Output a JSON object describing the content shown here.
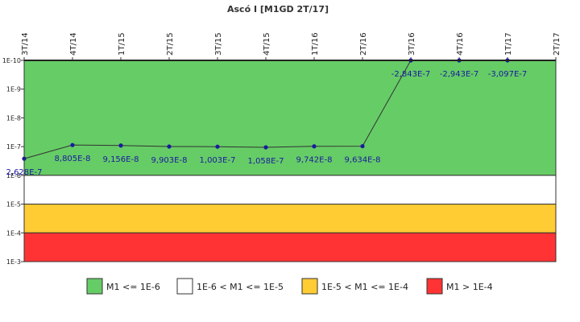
{
  "chart_data": {
    "type": "line",
    "title": "Ascó I [M1GD 2T/17]",
    "categories": [
      "3T/14",
      "4T/14",
      "1T/15",
      "2T/15",
      "3T/15",
      "4T/15",
      "1T/16",
      "2T/16",
      "3T/16",
      "4T/16",
      "1T/17",
      "2T/17"
    ],
    "y_ticks": [
      {
        "label": "1E-10",
        "exp": -10
      },
      {
        "label": "1E-9",
        "exp": -9
      },
      {
        "label": "1E-8",
        "exp": -8
      },
      {
        "label": "1E-7",
        "exp": -7
      },
      {
        "label": "1E-6",
        "exp": -6
      },
      {
        "label": "1E-5",
        "exp": -5
      },
      {
        "label": "1E-4",
        "exp": -4
      },
      {
        "label": "1E-3",
        "exp": -3
      }
    ],
    "y_scale": "log",
    "y_axis_inverted": true,
    "ylim": [
      1e-10,
      0.001
    ],
    "series": [
      {
        "values": [
          2.628e-07,
          8.805e-08,
          9.156e-08,
          9.903e-08,
          1.003e-07,
          1.058e-07,
          9.742e-08,
          9.634e-08,
          -2.843e-07,
          -2.943e-07,
          -3.097e-07,
          null
        ],
        "labels": [
          "2,628E-7",
          "8,805E-8",
          "9,156E-8",
          "9,903E-8",
          "1,003E-7",
          "1,058E-7",
          "9,742E-8",
          "9,634E-8",
          "-2,843E-7",
          "-2,943E-7",
          "-3,097E-7",
          ""
        ],
        "color": "#333333",
        "marker_color": "#1a1aa0"
      }
    ],
    "bands": [
      {
        "from_exp": -10,
        "to_exp": -6,
        "color": "#66cc66",
        "legend": "M1 <= 1E-6"
      },
      {
        "from_exp": -6,
        "to_exp": -5,
        "color": "#ffffff",
        "legend": "1E-6 < M1 <= 1E-5"
      },
      {
        "from_exp": -5,
        "to_exp": -4,
        "color": "#ffcc33",
        "legend": "1E-5 < M1 <= 1E-4"
      },
      {
        "from_exp": -4,
        "to_exp": -3,
        "color": "#ff3333",
        "legend": "M1 > 1E-4"
      }
    ],
    "legend_position": "bottom"
  }
}
